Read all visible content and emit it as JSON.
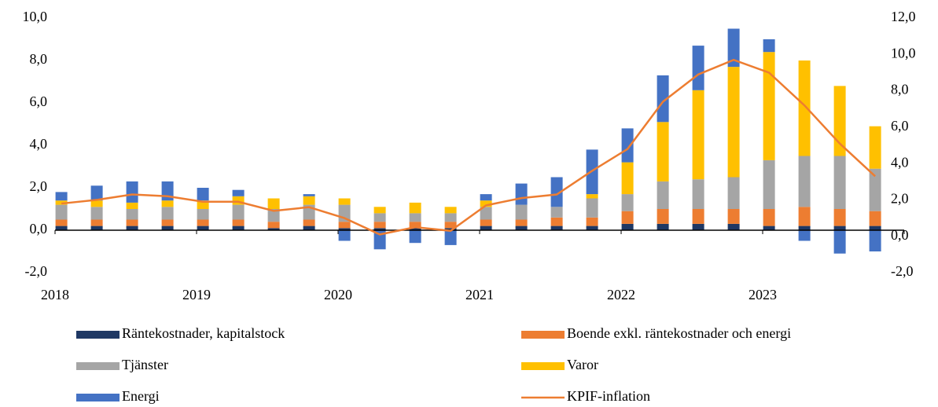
{
  "chart_data": {
    "type": "bar",
    "categories": [
      "2018",
      null,
      null,
      null,
      "2019",
      null,
      null,
      null,
      "2020",
      null,
      null,
      null,
      "2021",
      null,
      null,
      null,
      "2022",
      null,
      null,
      null,
      "2023",
      null,
      null,
      null
    ],
    "series": [
      {
        "name": "Räntekostnader, kapitalstock",
        "color": "#1f3864",
        "values": [
          0.2,
          0.2,
          0.2,
          0.2,
          0.2,
          0.2,
          0.1,
          0.2,
          0.1,
          0.1,
          0.1,
          0.1,
          0.2,
          0.2,
          0.2,
          0.2,
          0.3,
          0.3,
          0.3,
          0.3,
          0.2,
          0.2,
          0.2,
          0.2
        ]
      },
      {
        "name": "Boende exkl. räntekostnader och energi",
        "color": "#ed7d31",
        "values": [
          0.3,
          0.3,
          0.3,
          0.3,
          0.3,
          0.3,
          0.3,
          0.3,
          0.3,
          0.3,
          0.3,
          0.3,
          0.3,
          0.3,
          0.4,
          0.4,
          0.6,
          0.7,
          0.7,
          0.7,
          0.8,
          0.9,
          0.8,
          0.7
        ]
      },
      {
        "name": "Tjänster",
        "color": "#a5a5a5",
        "values": [
          0.7,
          0.6,
          0.5,
          0.6,
          0.5,
          0.7,
          0.6,
          0.7,
          0.8,
          0.4,
          0.4,
          0.4,
          0.6,
          0.7,
          0.5,
          0.9,
          0.8,
          1.3,
          1.4,
          1.5,
          2.3,
          2.4,
          2.5,
          2.0
        ]
      },
      {
        "name": "Varor",
        "color": "#ffc000",
        "values": [
          0.2,
          0.3,
          0.3,
          0.3,
          0.4,
          0.4,
          0.5,
          0.4,
          0.3,
          0.3,
          0.5,
          0.3,
          0.3,
          0.0,
          0.0,
          0.2,
          1.5,
          2.8,
          4.2,
          5.2,
          5.1,
          4.5,
          3.3,
          2.0
        ]
      },
      {
        "name": "Energi",
        "color": "#4472c4",
        "values": [
          0.4,
          0.7,
          1.0,
          0.9,
          0.6,
          0.3,
          0.0,
          0.1,
          -0.5,
          -0.9,
          -0.6,
          -0.7,
          0.3,
          1.0,
          1.4,
          2.1,
          1.6,
          2.2,
          2.1,
          1.8,
          0.6,
          -0.5,
          -1.1,
          -1.0
        ]
      },
      {
        "name": "KPIF-inflation",
        "color": "#ed7d31",
        "type": "line",
        "axis": "y2",
        "values": [
          1.8,
          2.0,
          2.3,
          2.2,
          1.9,
          1.9,
          1.4,
          1.6,
          1.0,
          0.1,
          0.5,
          0.3,
          1.7,
          2.1,
          2.3,
          3.6,
          4.8,
          7.4,
          8.9,
          9.7,
          9.0,
          7.2,
          5.1,
          3.3
        ]
      }
    ],
    "ylim": [
      -2,
      10
    ],
    "yticks": [
      {
        "value": -2,
        "label": "-2,0"
      },
      {
        "value": 0,
        "label": "0,0"
      },
      {
        "value": 2,
        "label": "2,0"
      },
      {
        "value": 4,
        "label": "4,0"
      },
      {
        "value": 6,
        "label": "6,0"
      },
      {
        "value": 8,
        "label": "8,0"
      },
      {
        "value": 10,
        "label": "10,0"
      }
    ],
    "y2lim": [
      -2,
      12
    ],
    "y2ticks": [
      {
        "value": -2,
        "label": "-2,0"
      },
      {
        "value": 0,
        "label": "0,0"
      },
      {
        "value": 2,
        "label": "2,0"
      },
      {
        "value": 4,
        "label": "4,0"
      },
      {
        "value": 6,
        "label": "6,0"
      },
      {
        "value": 8,
        "label": "8,0"
      },
      {
        "value": 10,
        "label": "10,0"
      },
      {
        "value": 12,
        "label": "12,0"
      }
    ],
    "stacked": true,
    "grid": false,
    "legend": "bottom"
  }
}
